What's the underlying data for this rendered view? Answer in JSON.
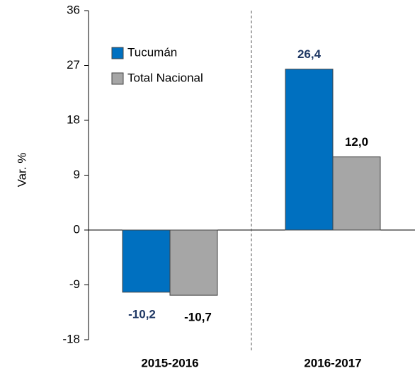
{
  "chart_data": {
    "type": "bar",
    "y_label": "Var. %",
    "categories": [
      "2015-2016",
      "2016-2017"
    ],
    "series": [
      {
        "name": "Tucumán",
        "color": "#0070c0",
        "label_color": "#1f3864",
        "values": [
          -10.2,
          26.4
        ],
        "value_labels": [
          "-10,2",
          "26,4"
        ]
      },
      {
        "name": "Total Nacional",
        "color": "#a6a6a6",
        "label_color": "#000000",
        "values": [
          -10.7,
          12.0
        ],
        "value_labels": [
          "-10,7",
          "12,0"
        ]
      }
    ],
    "ylim": [
      -18,
      36
    ],
    "yticks": [
      -18,
      -9,
      0,
      9,
      18,
      27,
      36
    ],
    "legend": "upper left",
    "grid": false
  }
}
